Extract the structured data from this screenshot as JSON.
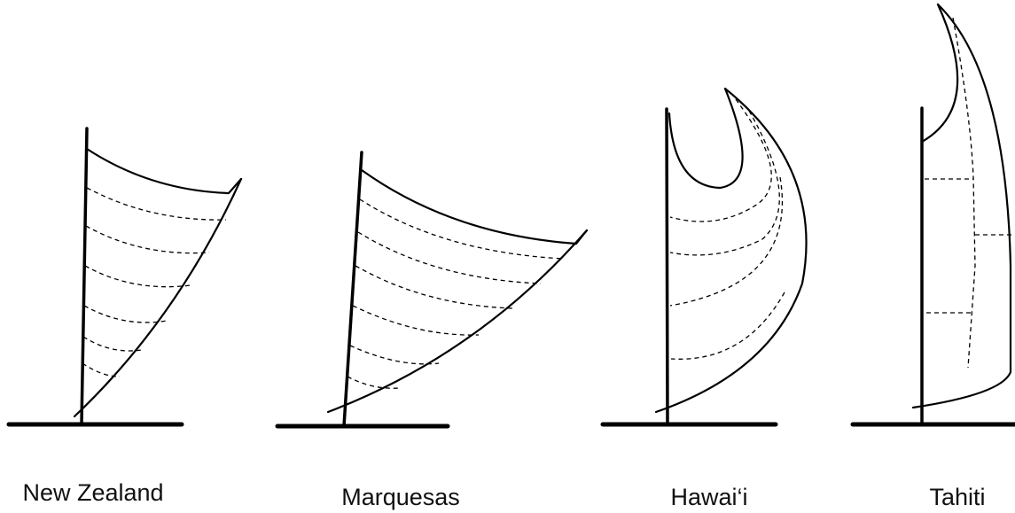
{
  "sails": [
    {
      "label": "New Zealand"
    },
    {
      "label": "Marquesas"
    },
    {
      "label": "Hawai‘i"
    },
    {
      "label": "Tahiti"
    }
  ]
}
